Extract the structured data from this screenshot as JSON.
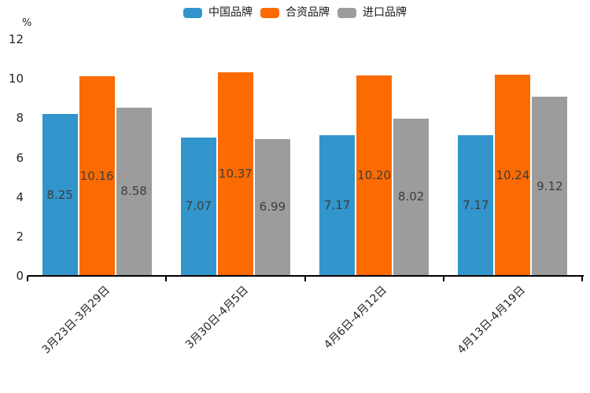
{
  "chart": {
    "y_unit_label": "%",
    "axis_color": "#000000",
    "tick_text_color": "#262626",
    "value_label_color": "#3d3d3d",
    "background_color": "#ffffff"
  },
  "chart_data": {
    "type": "bar",
    "title": "",
    "categories": [
      "3月23日-3月29日",
      "3月30日-4月5日",
      "4月6日-4月12日",
      "4月13日-4月19日"
    ],
    "series": [
      {
        "name": "中国品牌",
        "color": "#3295CC",
        "values": [
          8.25,
          7.07,
          7.17,
          7.17
        ],
        "labels": [
          "8.25",
          "7.07",
          "7.17",
          "7.17"
        ]
      },
      {
        "name": "合资品牌",
        "color": "#FC6A02",
        "values": [
          10.16,
          10.37,
          10.2,
          10.24
        ],
        "labels": [
          "10.16",
          "10.37",
          "10.20",
          "10.24"
        ]
      },
      {
        "name": "进口品牌",
        "color": "#9C9C9C",
        "values": [
          8.58,
          6.99,
          8.02,
          9.12
        ],
        "labels": [
          "8.58",
          "6.99",
          "8.02",
          "9.12"
        ]
      }
    ],
    "xlabel": "",
    "ylabel": "%",
    "ylim": [
      0,
      12
    ],
    "yticks": [
      0,
      2,
      4,
      6,
      8,
      10,
      12
    ],
    "grid": false,
    "legend_position": "top-center",
    "value_labels_position": "inside-center",
    "bar_edge_color": "#ffffff"
  }
}
